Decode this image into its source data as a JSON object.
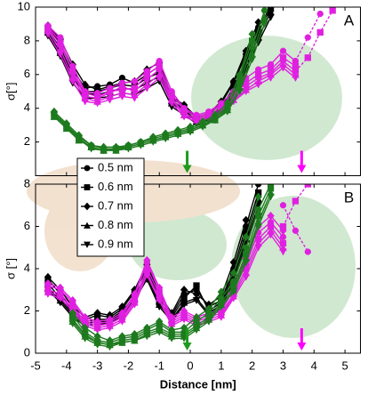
{
  "chart_data": [
    {
      "type": "line",
      "label": "A",
      "ylabel": "σ[°]",
      "xlim": [
        -5,
        5.5
      ],
      "ylim": [
        0,
        10
      ],
      "yticks": [
        2,
        4,
        6,
        8,
        10
      ],
      "groups": [
        {
          "color": "#000000",
          "x": [
            -4.6,
            -4.2,
            -3.8,
            -3.4,
            -3.0,
            -2.6,
            -2.2,
            -1.8,
            -1.4,
            -1.0,
            -0.6,
            -0.2,
            0.2,
            0.6,
            1.0,
            1.4,
            1.8,
            2.2,
            2.6
          ],
          "series": [
            {
              "values": [
                8.8,
                7.9,
                6.3,
                5.2,
                5.3,
                5.4,
                5.8,
                5.5,
                6.0,
                6.5,
                4.6,
                4.1,
                3.4,
                3.6,
                4.3,
                5.5,
                7.2,
                8.8,
                10
              ]
            },
            {
              "values": [
                8.6,
                7.6,
                6.0,
                5.0,
                5.0,
                5.2,
                5.4,
                5.3,
                5.8,
                6.1,
                4.5,
                3.9,
                3.3,
                3.5,
                4.1,
                5.2,
                6.9,
                8.5,
                9.9
              ]
            },
            {
              "values": [
                8.9,
                8.1,
                6.6,
                5.4,
                5.1,
                5.3,
                5.5,
                5.6,
                6.3,
                6.7,
                4.7,
                4.2,
                3.5,
                3.7,
                4.4,
                5.6,
                7.4,
                9.1,
                null
              ]
            },
            {
              "values": [
                8.5,
                7.3,
                5.8,
                4.9,
                4.8,
                5.0,
                5.2,
                5.1,
                5.5,
                5.9,
                4.3,
                3.8,
                3.2,
                3.4,
                4.0,
                5.0,
                6.6,
                8.2,
                9.7
              ]
            },
            {
              "values": [
                8.3,
                7.1,
                5.5,
                4.6,
                4.6,
                4.7,
                4.9,
                4.8,
                5.2,
                5.6,
                4.1,
                3.6,
                3.1,
                3.3,
                3.9,
                4.8,
                6.3,
                7.9,
                9.4
              ]
            }
          ]
        },
        {
          "color": "#e020e0",
          "x": [
            -4.6,
            -4.2,
            -3.8,
            -3.4,
            -3.0,
            -2.6,
            -2.2,
            -1.8,
            -1.4,
            -1.0,
            -0.6,
            -0.2,
            0.2,
            0.6,
            1.0,
            1.4,
            1.8,
            2.2,
            2.6,
            3.0,
            3.4
          ],
          "series": [
            {
              "values": [
                8.9,
                8.2,
                6.5,
                5.0,
                4.9,
                5.2,
                5.5,
                5.6,
                6.2,
                6.8,
                5.0,
                4.0,
                3.6,
                3.8,
                4.3,
                5.0,
                5.8,
                6.3,
                6.6,
                7.4,
                6.8
              ]
            },
            {
              "values": [
                8.7,
                7.8,
                6.2,
                4.9,
                4.7,
                5.0,
                5.1,
                5.2,
                6.0,
                6.5,
                4.8,
                3.9,
                3.5,
                3.7,
                4.2,
                4.8,
                5.5,
                6.0,
                6.3,
                7.0,
                6.5
              ]
            },
            {
              "values": [
                8.8,
                8.0,
                6.1,
                4.7,
                4.6,
                4.9,
                5.3,
                5.0,
                5.7,
                6.3,
                4.6,
                3.7,
                3.4,
                3.6,
                4.0,
                4.6,
                5.3,
                5.8,
                6.1,
                6.8,
                6.2
              ]
            },
            {
              "values": [
                8.6,
                7.5,
                5.8,
                4.6,
                4.4,
                4.7,
                4.9,
                4.8,
                5.4,
                6.0,
                4.5,
                3.6,
                3.3,
                3.5,
                3.9,
                4.5,
                5.1,
                5.6,
                6.0,
                6.6,
                6.0
              ]
            },
            {
              "values": [
                8.4,
                7.2,
                5.6,
                4.4,
                4.3,
                4.5,
                4.7,
                4.6,
                5.2,
                5.8,
                4.3,
                3.5,
                3.2,
                3.4,
                3.8,
                4.4,
                5.0,
                5.4,
                5.8,
                6.4,
                5.8
              ]
            }
          ]
        },
        {
          "color": "#e020e0",
          "dashed": true,
          "x": [
            3.4,
            3.8,
            4.2,
            4.6
          ],
          "series": [
            {
              "values": [
                6.8,
                8.2,
                9.6,
                null
              ]
            },
            {
              "values": [
                6.2,
                7.0,
                8.5,
                9.8
              ]
            }
          ]
        },
        {
          "color": "#1e7a1e",
          "x": [
            -4.4,
            -4.0,
            -3.6,
            -3.2,
            -2.8,
            -2.4,
            -2.0,
            -1.6,
            -1.2,
            -0.8,
            -0.4,
            0.0,
            0.4,
            0.8,
            1.2,
            1.6,
            2.0,
            2.4
          ],
          "series": [
            {
              "values": [
                3.7,
                3.0,
                2.3,
                1.8,
                1.6,
                1.6,
                1.8,
                2.0,
                2.2,
                2.4,
                2.6,
                2.8,
                3.1,
                3.5,
                4.1,
                5.5,
                7.6,
                9.8
              ]
            },
            {
              "values": [
                3.6,
                2.9,
                2.2,
                1.7,
                1.5,
                1.6,
                1.7,
                1.9,
                2.1,
                2.3,
                2.5,
                2.7,
                3.0,
                3.4,
                4.0,
                5.8,
                8.0,
                null
              ]
            },
            {
              "values": [
                3.8,
                3.1,
                2.4,
                1.8,
                1.7,
                1.7,
                1.8,
                2.0,
                2.3,
                2.5,
                2.7,
                2.9,
                3.2,
                3.6,
                4.3,
                6.0,
                8.4,
                null
              ]
            },
            {
              "values": [
                3.5,
                2.8,
                2.1,
                1.7,
                1.5,
                1.5,
                1.7,
                1.9,
                2.1,
                2.3,
                2.5,
                2.7,
                3.0,
                3.3,
                3.9,
                5.2,
                7.2,
                9.4
              ]
            },
            {
              "values": [
                3.6,
                2.9,
                2.2,
                1.6,
                1.5,
                1.5,
                1.6,
                1.8,
                2.0,
                2.2,
                2.4,
                2.6,
                2.9,
                3.3,
                3.8,
                5.0,
                6.9,
                9.0
              ]
            }
          ]
        }
      ]
    },
    {
      "type": "line",
      "label": "B",
      "ylabel": "σ [°]",
      "xlabel": "Distance [nm]",
      "xlim": [
        -5,
        5.5
      ],
      "xticks": [
        -5,
        -4,
        -3,
        -2,
        -1,
        0,
        1,
        2,
        3,
        4,
        5
      ],
      "ylim": [
        0,
        8
      ],
      "yticks": [
        0,
        2,
        4,
        6,
        8
      ],
      "groups": [
        {
          "color": "#000000",
          "x": [
            -4.6,
            -4.2,
            -3.8,
            -3.4,
            -3.0,
            -2.6,
            -2.2,
            -1.8,
            -1.4,
            -1.0,
            -0.6,
            -0.2,
            0.2,
            0.6,
            1.0,
            1.4,
            1.8,
            2.2
          ],
          "series": [
            {
              "values": [
                3.5,
                2.8,
                2.0,
                1.6,
                1.8,
                1.7,
                2.1,
                2.9,
                4.0,
                2.6,
                1.8,
                2.8,
                3.0,
                2.2,
                2.5,
                4.0,
                6.0,
                8.0
              ]
            },
            {
              "values": [
                3.3,
                2.6,
                1.9,
                1.5,
                1.6,
                1.6,
                2.0,
                2.7,
                3.8,
                2.4,
                1.7,
                2.6,
                3.2,
                2.0,
                2.4,
                3.8,
                5.7,
                7.6
              ]
            },
            {
              "values": [
                3.6,
                3.0,
                2.2,
                1.7,
                1.9,
                1.8,
                2.2,
                3.0,
                4.2,
                2.8,
                1.9,
                3.0,
                2.8,
                2.3,
                2.7,
                4.3,
                6.3,
                null
              ]
            },
            {
              "values": [
                3.1,
                2.5,
                1.8,
                1.4,
                1.5,
                1.5,
                1.9,
                2.6,
                3.6,
                2.3,
                1.6,
                2.4,
                2.6,
                1.9,
                2.3,
                3.6,
                5.4,
                7.3
              ]
            },
            {
              "values": [
                3.0,
                2.4,
                1.7,
                1.3,
                1.4,
                1.4,
                1.8,
                2.5,
                3.5,
                2.2,
                1.5,
                2.3,
                2.5,
                1.8,
                2.2,
                3.4,
                5.2,
                7.0
              ]
            }
          ]
        },
        {
          "color": "#e020e0",
          "x": [
            -4.6,
            -4.2,
            -3.8,
            -3.4,
            -3.0,
            -2.6,
            -2.2,
            -1.8,
            -1.4,
            -1.0,
            -0.6,
            -0.2,
            0.2,
            0.6,
            1.0,
            1.4,
            1.8,
            2.2,
            2.6,
            3.0
          ],
          "series": [
            {
              "values": [
                3.2,
                3.0,
                2.4,
                1.6,
                1.4,
                1.5,
                1.8,
                2.7,
                4.3,
                3.0,
                1.6,
                1.9,
                1.6,
                1.8,
                2.0,
                3.0,
                4.2,
                5.7,
                6.2,
                5.5
              ]
            },
            {
              "values": [
                3.0,
                2.8,
                2.2,
                1.5,
                1.3,
                1.4,
                1.7,
                2.5,
                4.0,
                2.8,
                1.5,
                1.8,
                1.5,
                1.7,
                1.9,
                2.8,
                4.0,
                5.4,
                6.0,
                5.2
              ]
            },
            {
              "values": [
                3.3,
                3.1,
                2.5,
                1.7,
                1.5,
                1.6,
                1.9,
                2.8,
                4.4,
                3.1,
                1.7,
                2.0,
                1.7,
                1.9,
                2.1,
                3.2,
                4.5,
                6.0,
                6.5,
                5.8
              ]
            },
            {
              "values": [
                2.9,
                2.7,
                2.1,
                1.4,
                1.2,
                1.3,
                1.6,
                2.4,
                3.8,
                2.6,
                1.4,
                1.7,
                1.4,
                1.6,
                1.8,
                2.7,
                3.8,
                5.2,
                5.8,
                5.0
              ]
            },
            {
              "values": [
                2.8,
                2.6,
                2.0,
                1.3,
                1.1,
                1.2,
                1.5,
                2.3,
                3.7,
                2.5,
                1.3,
                1.6,
                1.3,
                1.5,
                1.7,
                2.6,
                3.6,
                5.0,
                5.6,
                4.8
              ]
            }
          ]
        },
        {
          "color": "#e020e0",
          "dashed": true,
          "x": [
            3.0,
            3.4,
            3.8,
            4.2
          ],
          "series": [
            {
              "values": [
                7.0,
                5.8,
                4.8,
                null
              ]
            },
            {
              "values": [
                6.0,
                7.2,
                8.0,
                null
              ]
            }
          ]
        },
        {
          "color": "#1e7a1e",
          "x": [
            -3.8,
            -3.4,
            -3.0,
            -2.6,
            -2.2,
            -1.8,
            -1.4,
            -1.0,
            -0.6,
            -0.2,
            0.2,
            0.6,
            1.0,
            1.4,
            1.8,
            2.2,
            2.6
          ],
          "series": [
            {
              "values": [
                1.8,
                1.0,
                0.6,
                0.5,
                0.7,
                0.8,
                1.1,
                1.4,
                1.0,
                1.0,
                1.5,
                1.9,
                2.6,
                3.4,
                5.0,
                6.8,
                8.0
              ]
            },
            {
              "values": [
                1.6,
                0.9,
                0.5,
                0.4,
                0.6,
                0.7,
                1.0,
                1.2,
                0.9,
                0.9,
                1.3,
                1.7,
                2.4,
                3.2,
                4.7,
                6.5,
                7.8
              ]
            },
            {
              "values": [
                1.9,
                1.2,
                0.8,
                0.6,
                0.8,
                0.9,
                1.2,
                1.5,
                1.1,
                1.2,
                1.7,
                2.1,
                2.9,
                3.8,
                5.5,
                7.4,
                null
              ]
            },
            {
              "values": [
                1.5,
                0.8,
                0.5,
                0.4,
                0.5,
                0.6,
                0.9,
                1.1,
                0.8,
                0.8,
                1.2,
                1.6,
                2.3,
                3.0,
                4.5,
                6.2,
                7.6
              ]
            },
            {
              "values": [
                1.4,
                0.7,
                0.4,
                0.3,
                0.5,
                0.6,
                0.8,
                1.0,
                0.7,
                0.7,
                1.1,
                1.5,
                2.2,
                2.9,
                4.3,
                6.0,
                7.4
              ]
            }
          ]
        }
      ]
    }
  ],
  "legend": {
    "color": "#000000",
    "names": [
      "0.5 nm",
      "0.6 nm",
      "0.7 nm",
      "0.8 nm",
      "0.9 nm"
    ],
    "markers": [
      "circle",
      "square",
      "diamond",
      "triangle-up",
      "triangle-down"
    ]
  },
  "arrows": [
    {
      "x": -0.1,
      "color": "#1e9a1e"
    },
    {
      "x": 3.6,
      "color": "#ff00ff"
    }
  ]
}
